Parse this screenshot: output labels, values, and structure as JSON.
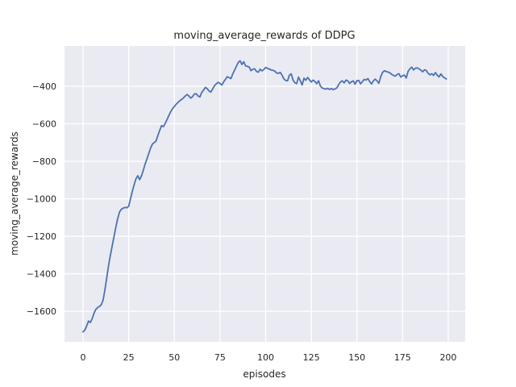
{
  "figure": {
    "background_color": "#ffffff",
    "axes_background_color": "#eaeaf2",
    "grid_color": "#ffffff",
    "text_color": "#262626",
    "line_color": "#4c72b0"
  },
  "chart_data": {
    "type": "line",
    "title": "moving_average_rewards of DDPG",
    "xlabel": "episodes",
    "ylabel": "moving_average_rewards",
    "legend": "none",
    "grid": true,
    "xlim": [
      -10.15,
      209.3
    ],
    "ylim": [
      -1763,
      -185
    ],
    "xticks": [
      0,
      25,
      50,
      75,
      100,
      125,
      150,
      175,
      200
    ],
    "xtick_labels": [
      "0",
      "25",
      "50",
      "75",
      "100",
      "125",
      "150",
      "175",
      "200"
    ],
    "yticks": [
      -400,
      -600,
      -800,
      -1000,
      -1200,
      -1400,
      -1600
    ],
    "ytick_labels": [
      "−400",
      "−600",
      "−800",
      "−1000",
      "−1200",
      "−1400",
      "−1600"
    ],
    "series": [
      {
        "name": "moving_average_rewards",
        "color": "#4c72b0",
        "x_start": 0,
        "x_step": 1,
        "y": [
          -1710,
          -1700,
          -1678,
          -1652,
          -1660,
          -1640,
          -1610,
          -1590,
          -1580,
          -1574,
          -1565,
          -1540,
          -1485,
          -1420,
          -1355,
          -1300,
          -1250,
          -1200,
          -1150,
          -1105,
          -1070,
          -1056,
          -1050,
          -1046,
          -1048,
          -1040,
          -1000,
          -960,
          -925,
          -893,
          -877,
          -898,
          -878,
          -848,
          -815,
          -788,
          -758,
          -730,
          -708,
          -700,
          -692,
          -662,
          -635,
          -610,
          -615,
          -598,
          -578,
          -556,
          -536,
          -520,
          -508,
          -496,
          -486,
          -477,
          -470,
          -462,
          -452,
          -444,
          -452,
          -463,
          -455,
          -441,
          -440,
          -452,
          -457,
          -433,
          -420,
          -406,
          -413,
          -425,
          -431,
          -414,
          -397,
          -387,
          -379,
          -385,
          -393,
          -377,
          -363,
          -349,
          -354,
          -359,
          -334,
          -314,
          -293,
          -273,
          -264,
          -284,
          -269,
          -291,
          -294,
          -297,
          -317,
          -309,
          -307,
          -321,
          -325,
          -309,
          -318,
          -311,
          -300,
          -304,
          -308,
          -313,
          -315,
          -319,
          -329,
          -331,
          -326,
          -341,
          -361,
          -369,
          -371,
          -341,
          -334,
          -366,
          -381,
          -386,
          -351,
          -371,
          -393,
          -357,
          -368,
          -353,
          -366,
          -377,
          -367,
          -375,
          -386,
          -371,
          -399,
          -409,
          -413,
          -415,
          -411,
          -417,
          -412,
          -418,
          -414,
          -409,
          -391,
          -377,
          -371,
          -382,
          -367,
          -371,
          -385,
          -376,
          -371,
          -389,
          -370,
          -369,
          -387,
          -375,
          -363,
          -367,
          -359,
          -375,
          -388,
          -371,
          -362,
          -371,
          -384,
          -350,
          -327,
          -317,
          -321,
          -324,
          -328,
          -336,
          -342,
          -346,
          -337,
          -333,
          -351,
          -344,
          -340,
          -356,
          -321,
          -307,
          -298,
          -313,
          -304,
          -302,
          -307,
          -314,
          -323,
          -312,
          -316,
          -331,
          -339,
          -333,
          -342,
          -327,
          -341,
          -350,
          -334,
          -349,
          -355,
          -361
        ]
      }
    ]
  }
}
